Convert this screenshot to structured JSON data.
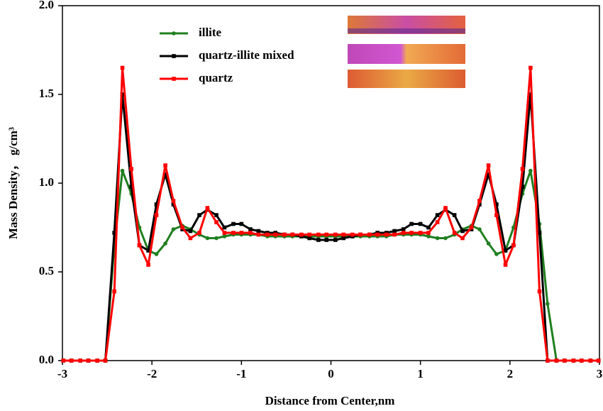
{
  "chart_data": {
    "type": "line",
    "xlabel": "Distance from Center,nm",
    "ylabel": "Mass Density， g/cm³",
    "x": [
      -2.99,
      -2.9,
      -2.8,
      -2.71,
      -2.61,
      -2.52,
      -2.42,
      -2.33,
      -2.23,
      -2.14,
      -2.04,
      -1.95,
      -1.85,
      -1.76,
      -1.66,
      -1.57,
      -1.47,
      -1.38,
      -1.28,
      -1.19,
      -1.09,
      -1.0,
      -0.9,
      -0.81,
      -0.71,
      -0.62,
      -0.52,
      -0.43,
      -0.33,
      -0.24,
      -0.14,
      -0.05,
      0.05,
      0.14,
      0.24,
      0.33,
      0.43,
      0.52,
      0.62,
      0.71,
      0.81,
      0.9,
      1.0,
      1.09,
      1.19,
      1.28,
      1.38,
      1.47,
      1.57,
      1.66,
      1.76,
      1.85,
      1.95,
      2.04,
      2.14,
      2.23,
      2.33,
      2.42,
      2.52,
      2.61,
      2.71,
      2.8,
      2.9,
      2.99
    ],
    "series": [
      {
        "name": "illite",
        "color": "#1f7f1f",
        "marker": "circle",
        "values": [
          0,
          0,
          0,
          0,
          0,
          0,
          0.65,
          1.07,
          0.94,
          0.75,
          0.62,
          0.6,
          0.66,
          0.74,
          0.76,
          0.74,
          0.71,
          0.69,
          0.69,
          0.7,
          0.71,
          0.71,
          0.71,
          0.71,
          0.7,
          0.7,
          0.7,
          0.7,
          0.7,
          0.7,
          0.7,
          0.7,
          0.7,
          0.7,
          0.7,
          0.7,
          0.7,
          0.7,
          0.7,
          0.71,
          0.71,
          0.71,
          0.71,
          0.7,
          0.69,
          0.69,
          0.71,
          0.74,
          0.76,
          0.74,
          0.66,
          0.6,
          0.62,
          0.75,
          0.94,
          1.07,
          0.77,
          0.32,
          0,
          0,
          0,
          0,
          0,
          0
        ]
      },
      {
        "name": "quartz-illite mixed",
        "color": "#000000",
        "marker": "square",
        "values": [
          0,
          0,
          0,
          0,
          0,
          0,
          0.72,
          1.5,
          0.98,
          0.65,
          0.62,
          0.88,
          1.05,
          0.88,
          0.74,
          0.73,
          0.82,
          0.85,
          0.82,
          0.75,
          0.77,
          0.77,
          0.74,
          0.73,
          0.72,
          0.72,
          0.71,
          0.71,
          0.7,
          0.69,
          0.68,
          0.68,
          0.68,
          0.69,
          0.7,
          0.71,
          0.71,
          0.72,
          0.72,
          0.73,
          0.74,
          0.77,
          0.77,
          0.75,
          0.82,
          0.85,
          0.82,
          0.73,
          0.74,
          0.88,
          1.05,
          0.88,
          0.62,
          0.65,
          0.98,
          1.5,
          0.72,
          0,
          0,
          0,
          0,
          0,
          0,
          0
        ]
      },
      {
        "name": "quartz",
        "color": "#ff0000",
        "marker": "square",
        "values": [
          0,
          0,
          0,
          0,
          0,
          0,
          0.39,
          1.65,
          1.08,
          0.65,
          0.54,
          0.82,
          1.1,
          0.9,
          0.75,
          0.69,
          0.72,
          0.86,
          0.78,
          0.72,
          0.72,
          0.72,
          0.72,
          0.71,
          0.71,
          0.71,
          0.71,
          0.71,
          0.71,
          0.71,
          0.71,
          0.71,
          0.71,
          0.71,
          0.71,
          0.71,
          0.71,
          0.71,
          0.71,
          0.71,
          0.72,
          0.72,
          0.72,
          0.72,
          0.78,
          0.86,
          0.72,
          0.69,
          0.75,
          0.9,
          1.1,
          0.82,
          0.54,
          0.65,
          1.08,
          1.65,
          0.39,
          0,
          0,
          0,
          0,
          0,
          0,
          0
        ]
      }
    ],
    "xlim": [
      -3,
      3
    ],
    "xticks": [
      -3,
      -2,
      -1,
      0,
      1,
      2,
      3
    ],
    "ylim": [
      0,
      2
    ],
    "yticks": [
      {
        "value": 0,
        "label": "0.0"
      },
      {
        "value": 0.5,
        "label": "0.5"
      },
      {
        "value": 1,
        "label": "1.0"
      },
      {
        "value": 1.5,
        "label": "1.5"
      },
      {
        "value": 2,
        "label": "2.0"
      }
    ],
    "grid": false,
    "legend": "upper-left"
  }
}
